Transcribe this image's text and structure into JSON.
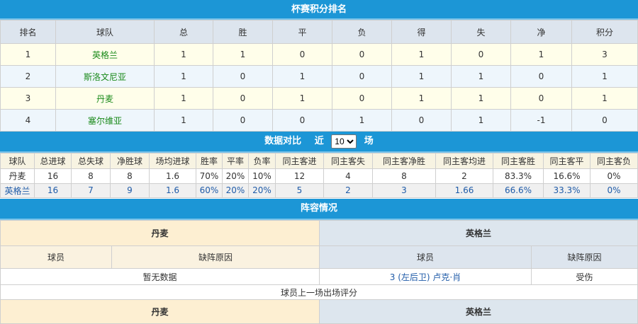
{
  "standings": {
    "title": "杯赛积分排名",
    "headers": [
      "排名",
      "球队",
      "总",
      "胜",
      "平",
      "负",
      "得",
      "失",
      "净",
      "积分"
    ],
    "rows": [
      [
        "1",
        "英格兰",
        "1",
        "1",
        "0",
        "0",
        "1",
        "0",
        "1",
        "3"
      ],
      [
        "2",
        "斯洛文尼亚",
        "1",
        "0",
        "1",
        "0",
        "1",
        "1",
        "0",
        "1"
      ],
      [
        "3",
        "丹麦",
        "1",
        "0",
        "1",
        "0",
        "1",
        "1",
        "0",
        "1"
      ],
      [
        "4",
        "塞尔维亚",
        "1",
        "0",
        "0",
        "1",
        "0",
        "1",
        "-1",
        "0"
      ]
    ]
  },
  "compare": {
    "title": "数据对比",
    "near": "近",
    "count": "10",
    "unit": "场",
    "headers": [
      "球队",
      "总进球",
      "总失球",
      "净胜球",
      "场均进球",
      "胜率",
      "平率",
      "负率",
      "同主客进",
      "同主客失",
      "同主客净胜",
      "同主客均进",
      "同主客胜",
      "同主客平",
      "同主客负"
    ],
    "rows": [
      [
        "丹麦",
        "16",
        "8",
        "8",
        "1.6",
        "70%",
        "20%",
        "10%",
        "12",
        "4",
        "8",
        "2",
        "83.3%",
        "16.6%",
        "0%"
      ],
      [
        "英格兰",
        "16",
        "7",
        "9",
        "1.6",
        "60%",
        "20%",
        "20%",
        "5",
        "2",
        "3",
        "1.66",
        "66.6%",
        "33.3%",
        "0%"
      ]
    ]
  },
  "lineup": {
    "title": "阵容情况",
    "home": "丹麦",
    "away": "英格兰",
    "player": "球员",
    "reason": "缺阵原因",
    "home_empty": "暂无数据",
    "away_player": "3 (左后卫) 卢克·肖",
    "away_reason": "受伤",
    "rating_title": "球员上一场出场评分",
    "home2": "丹麦",
    "away2": "英格兰"
  },
  "colors": {
    "header_bar": "#1c96d6",
    "team_link": "#1a8a1a",
    "blue_text": "#1f5ba8"
  }
}
